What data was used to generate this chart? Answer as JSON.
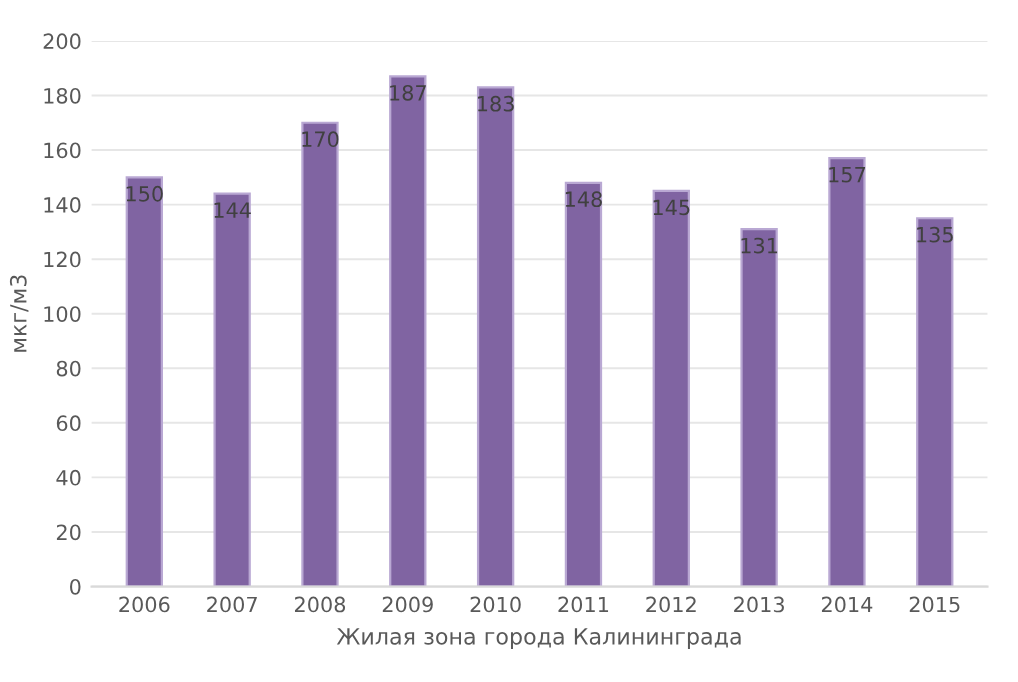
{
  "chart_data": {
    "type": "bar",
    "xlabel": "Жилая зона города Калининграда",
    "ylabel": "мкг/м3",
    "categories": [
      "2006",
      "2007",
      "2008",
      "2009",
      "2010",
      "2011",
      "2012",
      "2013",
      "2014",
      "2015"
    ],
    "values": [
      150,
      144,
      170,
      187,
      183,
      148,
      145,
      131,
      157,
      135
    ],
    "color": "#8064a2",
    "data_labels": true,
    "ylim": [
      0,
      200
    ],
    "yticks": [
      0,
      20,
      40,
      60,
      80,
      100,
      120,
      140,
      160,
      180,
      200
    ],
    "grid": "y"
  }
}
